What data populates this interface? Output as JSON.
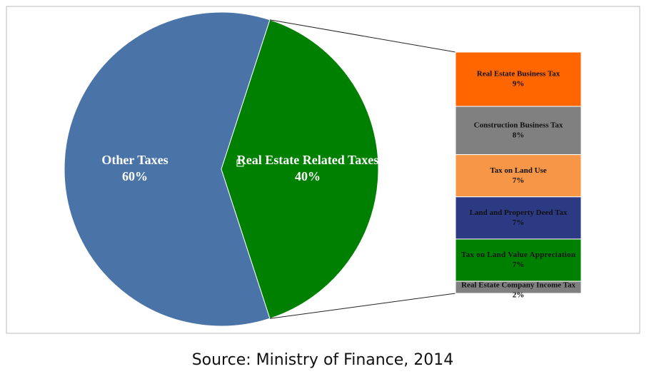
{
  "chart_data": {
    "type": "pie-of-bar",
    "categories": [
      "Other Taxes",
      "Real Estate Related Taxes"
    ],
    "values": [
      60,
      40
    ],
    "value_labels": [
      "60%",
      "40%"
    ],
    "colors": [
      "#4a74a8",
      "#008000"
    ],
    "breakdown": {
      "categories": [
        "Real Estate Business Tax",
        "Construction Business Tax",
        "Tax on Land Use",
        "Land and Property Deed Tax",
        "Tax on Land Value Appreciation",
        "Real Estate Company Income Tax"
      ],
      "values": [
        9,
        8,
        7,
        7,
        7,
        2
      ],
      "value_labels": [
        "9%",
        "8%",
        "7%",
        "7%",
        "7%",
        "2%"
      ],
      "colors": [
        "#ff6600",
        "#808080",
        "#f79646",
        "#2c3a84",
        "#008000",
        "#808080"
      ]
    },
    "source": "Source: Ministry of Finance, 2014"
  }
}
